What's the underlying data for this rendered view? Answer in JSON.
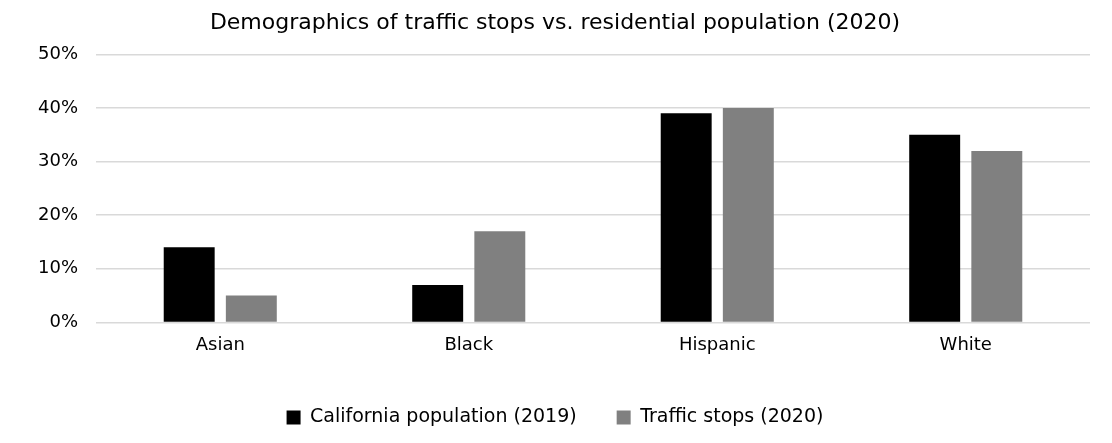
{
  "chart_data": {
    "type": "bar",
    "title": "Demographics of traffic stops vs. residential population (2020)",
    "categories": [
      "Asian",
      "Black",
      "Hispanic",
      "White"
    ],
    "series": [
      {
        "name": "California population (2019)",
        "color": "#000000",
        "values": [
          14,
          7,
          39,
          35
        ]
      },
      {
        "name": "Traffic stops (2020)",
        "color": "#808080",
        "values": [
          5,
          17,
          40,
          32
        ]
      }
    ],
    "ylim": [
      0,
      50
    ],
    "yticks": [
      {
        "value": 0,
        "label": "0%"
      },
      {
        "value": 10,
        "label": "10%"
      },
      {
        "value": 20,
        "label": "20%"
      },
      {
        "value": 30,
        "label": "30%"
      },
      {
        "value": 40,
        "label": "40%"
      },
      {
        "value": 50,
        "label": "50%"
      }
    ],
    "grid": "y",
    "legend": "bottom"
  }
}
